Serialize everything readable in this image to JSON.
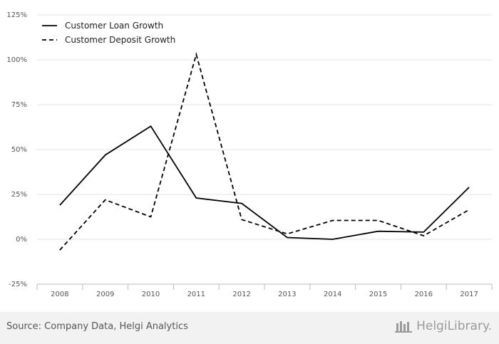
{
  "chart_data": {
    "type": "line",
    "categories": [
      "2008",
      "2009",
      "2010",
      "2011",
      "2012",
      "2013",
      "2014",
      "2015",
      "2016",
      "2017"
    ],
    "series": [
      {
        "name": "Customer Loan Growth",
        "style": "solid",
        "color": "#000000",
        "values": [
          19,
          47,
          63,
          23,
          20,
          1,
          0,
          4.5,
          4,
          29
        ]
      },
      {
        "name": "Customer Deposit Growth",
        "style": "dashed",
        "color": "#000000",
        "values": [
          -6,
          22,
          12.5,
          103,
          11,
          3,
          10.5,
          10.5,
          2,
          16.5
        ]
      }
    ],
    "ylim": [
      -25,
      125
    ],
    "yticks": [
      -25,
      0,
      25,
      50,
      75,
      100,
      125
    ],
    "ytick_labels": [
      "-25%",
      "0%",
      "25%",
      "50%",
      "75%",
      "100%",
      "125%"
    ],
    "grid": true,
    "legend": "top-left"
  },
  "footer": {
    "source": "Source: Company Data, Helgi Analytics",
    "brand": "HelgiLibrary."
  }
}
